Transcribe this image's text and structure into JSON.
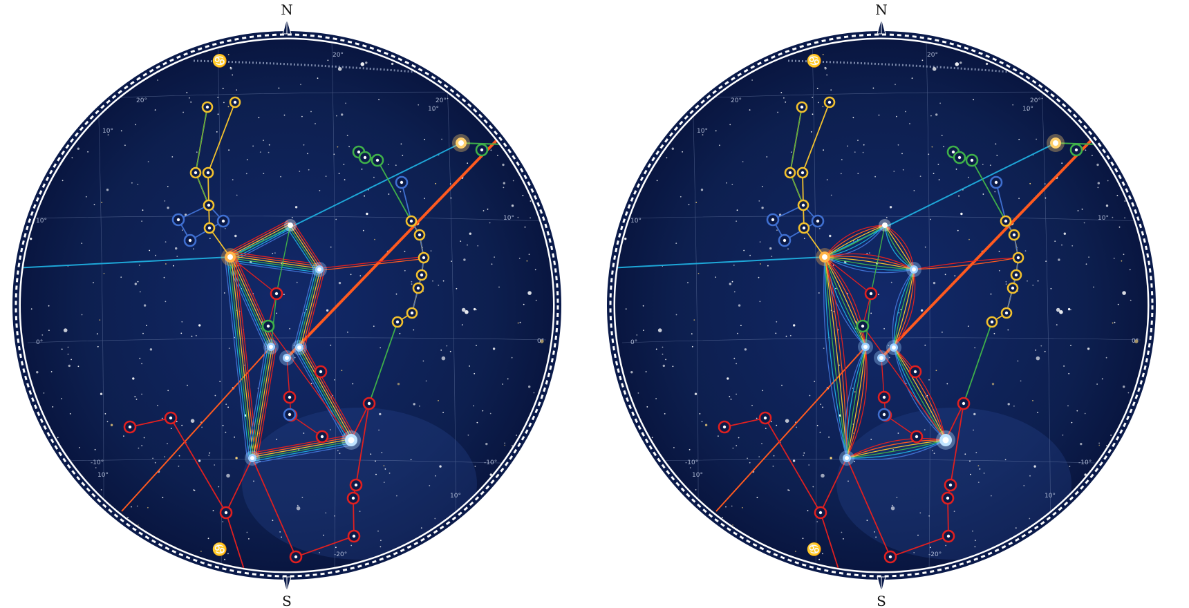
{
  "compass": {
    "north": "N",
    "south": "S"
  },
  "symbols": {
    "zodiac": "♋"
  },
  "colors": {
    "sky": "#0d1f4f",
    "sky_edge": "#07123a",
    "rim": "#0a1a4a",
    "constellation_red": "#e02020",
    "constellation_yellow": "#f2c12e",
    "constellation_green": "#3fb04a",
    "constellation_blue": "#3f6fd0",
    "constellation_orange": "#ff5a1f",
    "ecliptic_cyan": "#1ea7d8",
    "grid": "#8fa0c7"
  },
  "panels": [
    {
      "id": "left",
      "style_name": "straight",
      "degree_labels": [
        {
          "t": "20°"
        },
        {
          "t": "20°"
        },
        {
          "t": "20°"
        },
        {
          "t": "10°"
        },
        {
          "t": "10°"
        },
        {
          "t": "10°"
        },
        {
          "t": "10°"
        },
        {
          "t": "0°"
        },
        {
          "t": "0°"
        },
        {
          "t": "-10°"
        },
        {
          "t": "-10°"
        },
        {
          "t": "10°"
        },
        {
          "t": "10°"
        },
        {
          "t": "-20°"
        }
      ]
    },
    {
      "id": "right",
      "style_name": "curved",
      "degree_labels": [
        {
          "t": "20°"
        },
        {
          "t": "20°"
        },
        {
          "t": "20°"
        },
        {
          "t": "10°"
        },
        {
          "t": "10°"
        },
        {
          "t": "10°"
        },
        {
          "t": "10°"
        },
        {
          "t": "0°"
        },
        {
          "t": "0°"
        },
        {
          "t": "-10°"
        },
        {
          "t": "-10°"
        },
        {
          "t": "10°"
        },
        {
          "t": "10°"
        },
        {
          "t": "-20°"
        }
      ]
    }
  ]
}
